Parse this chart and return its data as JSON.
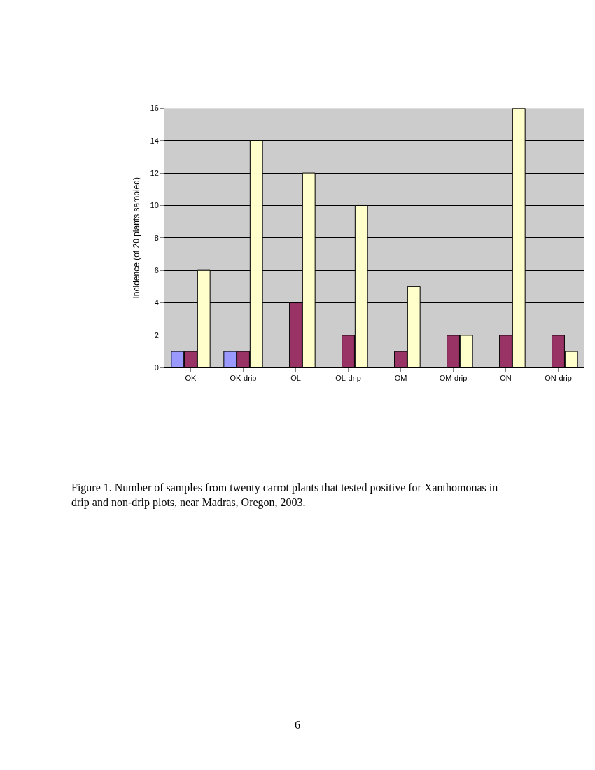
{
  "chart_data": {
    "type": "bar",
    "ylabel": "Incidence (of 20 plants sampled)",
    "categories": [
      "OK",
      "OK-drip",
      "OL",
      "OL-drip",
      "OM",
      "OM-drip",
      "ON",
      "ON-drip"
    ],
    "series": [
      {
        "color": "#9999ff",
        "values": [
          1,
          1,
          0,
          0,
          0,
          0,
          0,
          0
        ]
      },
      {
        "color": "#993366",
        "values": [
          1,
          1,
          4,
          2,
          1,
          2,
          2,
          2
        ]
      },
      {
        "color": "#ffffcc",
        "values": [
          6,
          14,
          12,
          10,
          5,
          2,
          16,
          1
        ]
      }
    ],
    "ylim": [
      0,
      16
    ],
    "yticks": [
      0,
      2,
      4,
      6,
      8,
      10,
      12,
      14,
      16
    ],
    "grid": "y",
    "annotations": [
      "Figure 1. Number of samples from twenty carrot plants that tested positive for Xanthomonas in drip and non-drip plots, near Madras, Oregon, 2003.",
      "6"
    ]
  }
}
